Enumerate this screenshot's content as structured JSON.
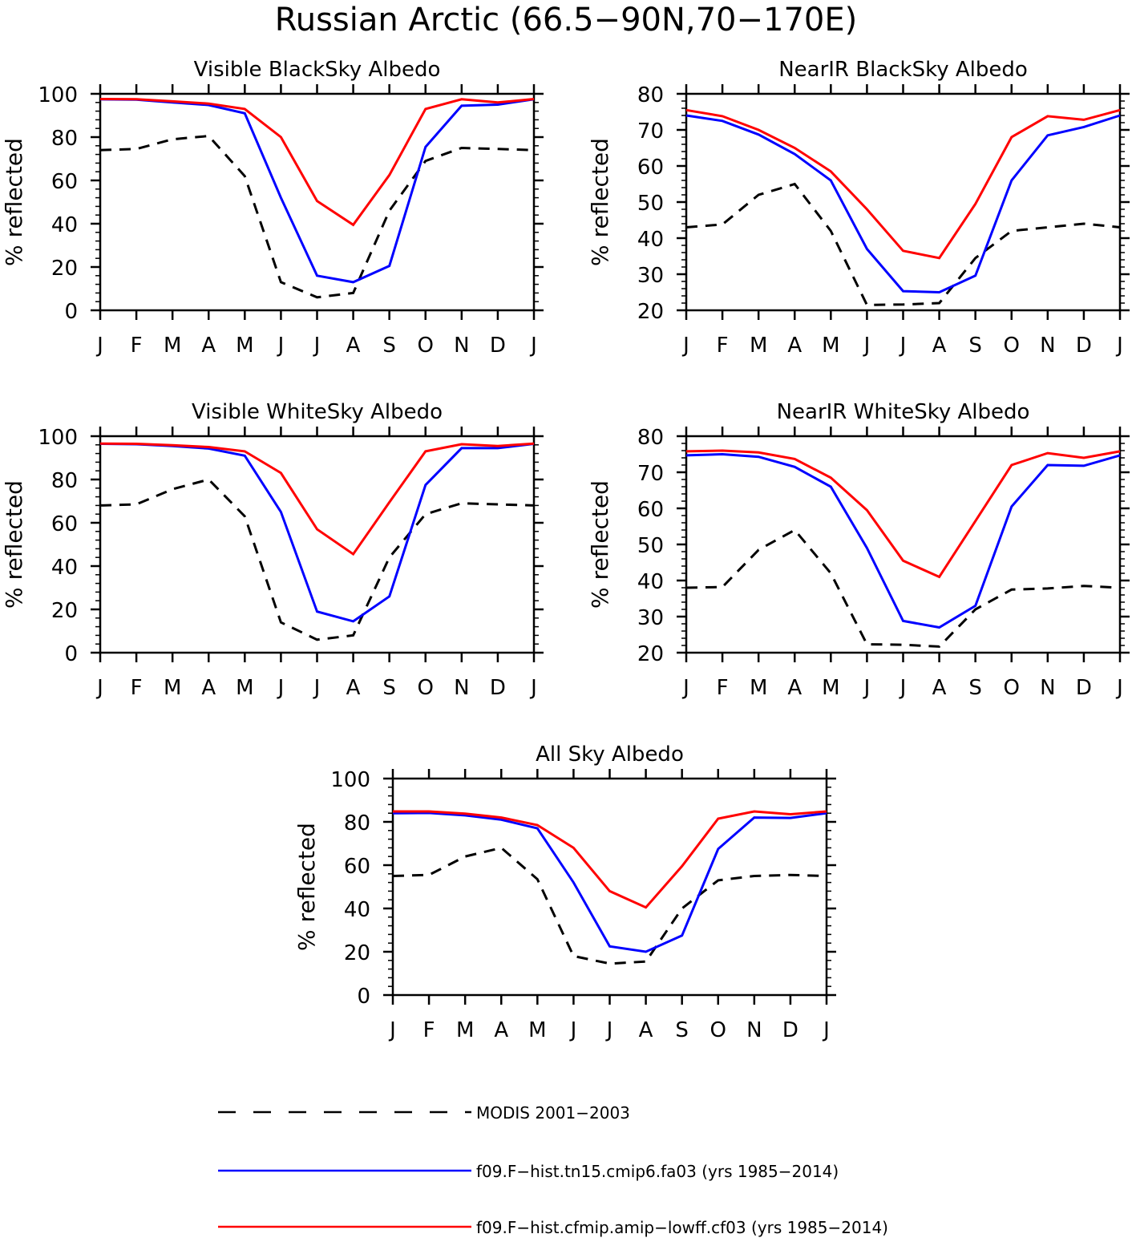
{
  "title": "Russian Arctic (66.5−90N,70−170E)",
  "colors": {
    "modis": "#000000",
    "model1": "#0000ff",
    "model2": "#ff0000"
  },
  "legend": [
    {
      "key": "modis",
      "label": "MODIS 2001−2003",
      "style": "dashed"
    },
    {
      "key": "model1",
      "label": "f09.F−hist.tn15.cmip6.fa03 (yrs 1985−2014)",
      "style": "solid"
    },
    {
      "key": "model2",
      "label": "f09.F−hist.cfmip.amip−lowff.cf03 (yrs 1985−2014)",
      "style": "solid"
    }
  ],
  "chart_data": [
    {
      "type": "line",
      "title": "Visible BlackSky Albedo",
      "ylabel": "% reflected",
      "categories": [
        "J",
        "F",
        "M",
        "A",
        "M",
        "J",
        "J",
        "A",
        "S",
        "O",
        "N",
        "D",
        "J"
      ],
      "ylim": [
        0,
        100
      ],
      "yticks": [
        0,
        20,
        40,
        60,
        80,
        100
      ],
      "series": [
        {
          "key": "modis",
          "values": [
            74,
            74.5,
            79,
            80.5,
            62,
            13,
            6,
            8,
            46,
            69,
            75,
            74.5,
            74
          ]
        },
        {
          "key": "model1",
          "values": [
            97.5,
            97.3,
            96,
            94.8,
            91,
            52,
            16,
            13,
            20.5,
            75.5,
            94.5,
            95,
            97.5
          ]
        },
        {
          "key": "model2",
          "values": [
            97.6,
            97.5,
            96.5,
            95.5,
            93,
            80,
            50.5,
            39.5,
            62.5,
            93,
            97.5,
            96,
            97.6
          ]
        }
      ]
    },
    {
      "type": "line",
      "title": "NearIR BlackSky Albedo",
      "ylabel": "% reflected",
      "categories": [
        "J",
        "F",
        "M",
        "A",
        "M",
        "J",
        "J",
        "A",
        "S",
        "O",
        "N",
        "D",
        "J"
      ],
      "ylim": [
        20,
        80
      ],
      "yticks": [
        20,
        30,
        40,
        50,
        60,
        70,
        80
      ],
      "series": [
        {
          "key": "modis",
          "values": [
            43,
            43.8,
            52,
            55,
            42,
            21.5,
            21.6,
            22,
            34.5,
            42,
            43,
            44,
            43
          ]
        },
        {
          "key": "model1",
          "values": [
            74,
            72.5,
            68.7,
            63.3,
            56,
            37,
            25.3,
            25,
            29.6,
            56,
            68.5,
            70.8,
            74
          ]
        },
        {
          "key": "model2",
          "values": [
            75.5,
            73.8,
            70,
            65,
            58.5,
            48,
            36.5,
            34.5,
            49.5,
            68,
            73.8,
            72.8,
            75.5
          ]
        }
      ]
    },
    {
      "type": "line",
      "title": "Visible WhiteSky Albedo",
      "ylabel": "% reflected",
      "categories": [
        "J",
        "F",
        "M",
        "A",
        "M",
        "J",
        "J",
        "A",
        "S",
        "O",
        "N",
        "D",
        "J"
      ],
      "ylim": [
        0,
        100
      ],
      "yticks": [
        0,
        20,
        40,
        60,
        80,
        100
      ],
      "series": [
        {
          "key": "modis",
          "values": [
            68,
            68.5,
            75.5,
            80,
            63,
            14,
            6,
            8,
            44,
            64,
            69,
            68.5,
            68
          ]
        },
        {
          "key": "model1",
          "values": [
            96.5,
            96.3,
            95.5,
            94.3,
            91,
            65,
            19,
            14.5,
            26,
            77.5,
            94.5,
            94.5,
            96.5
          ]
        },
        {
          "key": "model2",
          "values": [
            96.6,
            96.5,
            95.8,
            95,
            93,
            83,
            57,
            45.5,
            69.5,
            93,
            96.3,
            95.5,
            96.6
          ]
        }
      ]
    },
    {
      "type": "line",
      "title": "NearIR WhiteSky Albedo",
      "ylabel": "% reflected",
      "categories": [
        "J",
        "F",
        "M",
        "A",
        "M",
        "J",
        "J",
        "A",
        "S",
        "O",
        "N",
        "D",
        "J"
      ],
      "ylim": [
        20,
        80
      ],
      "yticks": [
        20,
        30,
        40,
        50,
        60,
        70,
        80
      ],
      "series": [
        {
          "key": "modis",
          "values": [
            38,
            38.2,
            48.5,
            54,
            42,
            22.3,
            22.2,
            21.7,
            32,
            37.5,
            37.8,
            38.5,
            38
          ]
        },
        {
          "key": "model1",
          "values": [
            74.7,
            75,
            74.3,
            71.5,
            66,
            49,
            28.8,
            27,
            33,
            60.5,
            72,
            71.8,
            74.7
          ]
        },
        {
          "key": "model2",
          "values": [
            75.8,
            76,
            75.5,
            73.7,
            68.5,
            59.5,
            45.5,
            41,
            56.5,
            72,
            75.3,
            74,
            75.8
          ]
        }
      ]
    },
    {
      "type": "line",
      "title": "All Sky Albedo",
      "ylabel": "% reflected",
      "categories": [
        "J",
        "F",
        "M",
        "A",
        "M",
        "J",
        "J",
        "A",
        "S",
        "O",
        "N",
        "D",
        "J"
      ],
      "ylim": [
        0,
        100
      ],
      "yticks": [
        0,
        20,
        40,
        60,
        80,
        100
      ],
      "series": [
        {
          "key": "modis",
          "values": [
            55,
            55.5,
            64,
            68,
            53.5,
            18,
            14.5,
            15.5,
            40,
            53,
            55,
            55.5,
            55
          ]
        },
        {
          "key": "model1",
          "values": [
            84,
            84.1,
            83,
            81,
            77,
            52,
            22.5,
            20,
            27.5,
            67.5,
            82,
            81.8,
            84
          ]
        },
        {
          "key": "model2",
          "values": [
            84.8,
            84.8,
            83.8,
            82,
            78.5,
            68,
            48,
            40.5,
            59.5,
            81.5,
            84.8,
            83.5,
            84.8
          ]
        }
      ]
    }
  ]
}
